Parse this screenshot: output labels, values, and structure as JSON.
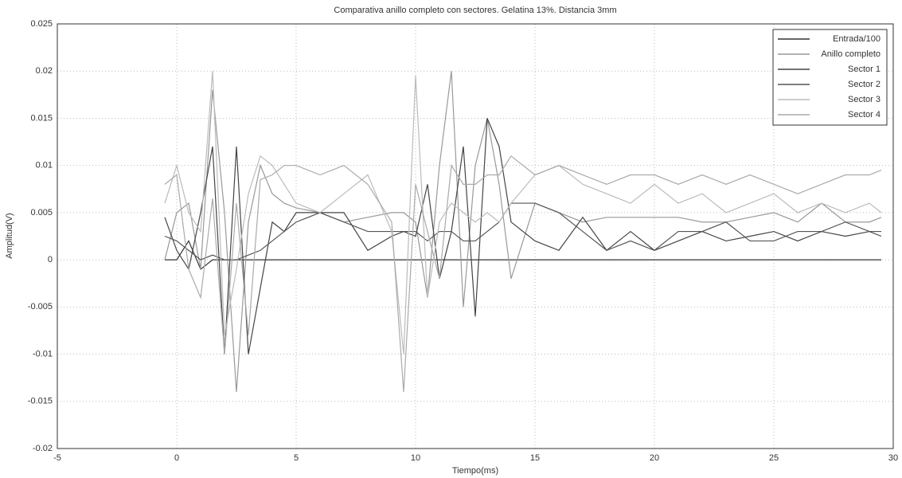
{
  "chart_data": {
    "type": "line",
    "title": "Comparativa anillo completo con sectores. Gelatina 13%. Distancia 3mm",
    "x_label": "Tiempo(ms)",
    "y_label": "Amplitud(V)",
    "x": [
      -0.5,
      0,
      0.5,
      1,
      1.5,
      2,
      2.5,
      3,
      3.5,
      4,
      4.5,
      5,
      6,
      7,
      8,
      9,
      9.5,
      10,
      10.5,
      11,
      11.5,
      12,
      12.5,
      13,
      13.5,
      14,
      15,
      16,
      17,
      18,
      19,
      20,
      21,
      22,
      23,
      24,
      25,
      26,
      27,
      28,
      29,
      29.5
    ],
    "series": [
      {
        "name": "Entrada/100",
        "color": "#333333",
        "values": [
          0,
          0,
          0.002,
          -0.001,
          0,
          0,
          0,
          0,
          0,
          0,
          0,
          0,
          0,
          0,
          0,
          0,
          0,
          0,
          0,
          0,
          0,
          0,
          0,
          0,
          0,
          0,
          0,
          0,
          0,
          0,
          0,
          0,
          0,
          0,
          0,
          0,
          0,
          0,
          0,
          0,
          0,
          0
        ]
      },
      {
        "name": "Anillo completo",
        "color": "#999999",
        "values": [
          0,
          0.005,
          0.006,
          -0.001,
          0.018,
          0.005,
          -0.014,
          0.004,
          0.01,
          0.007,
          0.006,
          0.0055,
          0.005,
          0.004,
          0.0045,
          0.005,
          0.005,
          0.004,
          -0.004,
          0.01,
          0.02,
          -0.005,
          0.01,
          0.015,
          0.008,
          -0.002,
          0.006,
          0.005,
          0.004,
          0.0045,
          0.0045,
          0.0045,
          0.0045,
          0.004,
          0.004,
          0.0045,
          0.005,
          0.004,
          0.006,
          0.004,
          0.004,
          0.0045
        ]
      },
      {
        "name": "Sector 1",
        "color": "#444444",
        "values": [
          0.0045,
          0.001,
          -0.001,
          0.005,
          0.012,
          -0.01,
          0.012,
          -0.01,
          -0.003,
          0.004,
          0.003,
          0.005,
          0.005,
          0.005,
          0.001,
          0.0025,
          0.003,
          0.0025,
          0.008,
          -0.002,
          0.003,
          0.012,
          -0.006,
          0.015,
          0.012,
          0.004,
          0.002,
          0.001,
          0.0045,
          0.001,
          0.003,
          0.001,
          0.002,
          0.003,
          0.002,
          0.0025,
          0.003,
          0.002,
          0.003,
          0.0025,
          0.003,
          0.0025
        ]
      },
      {
        "name": "Sector 2",
        "color": "#555555",
        "values": [
          0.0025,
          0.002,
          0.001,
          0,
          0.0005,
          0,
          0,
          0.0005,
          0.001,
          0.002,
          0.003,
          0.004,
          0.005,
          0.004,
          0.003,
          0.003,
          0.003,
          0.003,
          0.002,
          0.003,
          0.003,
          0.002,
          0.002,
          0.003,
          0.004,
          0.006,
          0.006,
          0.005,
          0.003,
          0.001,
          0.002,
          0.001,
          0.003,
          0.003,
          0.004,
          0.002,
          0.002,
          0.003,
          0.003,
          0.004,
          0.003,
          0.003
        ]
      },
      {
        "name": "Sector 3",
        "color": "#bbbbbb",
        "values": [
          0.006,
          0.01,
          0.005,
          0.003,
          0.02,
          -0.008,
          -0.001,
          0.007,
          0.011,
          0.01,
          0.008,
          0.006,
          0.005,
          0.007,
          0.009,
          0.003,
          -0.01,
          0.0195,
          -0.004,
          0.004,
          0.006,
          0.005,
          0.004,
          0.005,
          0.004,
          0.006,
          0.009,
          0.01,
          0.008,
          0.007,
          0.006,
          0.008,
          0.006,
          0.007,
          0.005,
          0.006,
          0.007,
          0.005,
          0.006,
          0.005,
          0.006,
          0.005
        ]
      },
      {
        "name": "Sector 4",
        "color": "#aaaaaa",
        "values": [
          0.008,
          0.009,
          -0.001,
          -0.004,
          0.0065,
          -0.01,
          0.006,
          -0.008,
          0.0085,
          0.009,
          0.01,
          0.01,
          0.009,
          0.01,
          0.008,
          0.004,
          -0.014,
          0.008,
          0.003,
          -0.002,
          0.01,
          0.008,
          0.008,
          0.009,
          0.009,
          0.011,
          0.009,
          0.01,
          0.009,
          0.008,
          0.009,
          0.009,
          0.008,
          0.009,
          0.008,
          0.009,
          0.008,
          0.007,
          0.008,
          0.009,
          0.009,
          0.0095
        ]
      }
    ],
    "xlim": [
      -5,
      30
    ],
    "xticks": [
      -5,
      0,
      5,
      10,
      15,
      20,
      25,
      30
    ],
    "ylim": [
      -0.02,
      0.025
    ],
    "yticks": [
      -0.02,
      -0.015,
      -0.01,
      -0.005,
      0,
      0.005,
      0.01,
      0.015,
      0.02,
      0.025
    ],
    "grid": true,
    "legend": "upper right"
  }
}
